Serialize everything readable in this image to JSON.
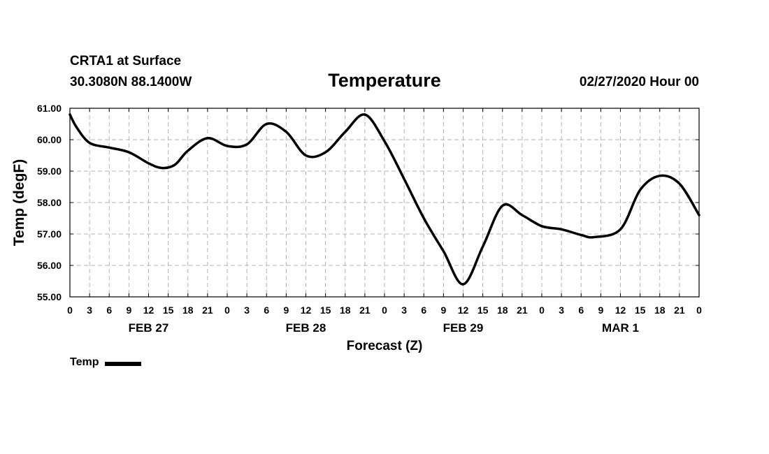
{
  "header": {
    "station_name": "CRTA1 at Surface",
    "station_coords": "30.3080N 88.1400W",
    "title": "Temperature",
    "run_time": "02/27/2020 Hour 00"
  },
  "legend": {
    "label": "Temp",
    "color": "#000000"
  },
  "chart_data": {
    "type": "line",
    "title": "Temperature",
    "xlabel": "Forecast (Z)",
    "ylabel": "Temp (degF)",
    "ylim": [
      55.0,
      61.0
    ],
    "xlim": [
      0,
      96
    ],
    "x_unit": "forecast hour (Z)",
    "y_ticks": [
      "55.00",
      "56.00",
      "57.00",
      "58.00",
      "59.00",
      "60.00",
      "61.00"
    ],
    "x_tick_labels": [
      "0",
      "3",
      "6",
      "9",
      "12",
      "15",
      "18",
      "21",
      "0",
      "3",
      "6",
      "9",
      "12",
      "15",
      "18",
      "21",
      "0",
      "3",
      "6",
      "9",
      "12",
      "15",
      "18",
      "21",
      "0",
      "3",
      "6",
      "9",
      "12",
      "15",
      "18",
      "21",
      "0"
    ],
    "date_labels": [
      {
        "label": "FEB 27",
        "hour": 12
      },
      {
        "label": "FEB 28",
        "hour": 36
      },
      {
        "label": "FEB 29",
        "hour": 60
      },
      {
        "label": "MAR 1",
        "hour": 84
      }
    ],
    "grid": true,
    "legend_position": "bottom-left",
    "series": [
      {
        "name": "Temp",
        "color": "#000000",
        "x": [
          0,
          1,
          3,
          6,
          9,
          12,
          14,
          16,
          18,
          21,
          24,
          27,
          30,
          33,
          36,
          39,
          42,
          45,
          48,
          51,
          54,
          57,
          60,
          63,
          66,
          69,
          72,
          75,
          78,
          80,
          84,
          87,
          90,
          93,
          96
        ],
        "values": [
          60.8,
          60.4,
          59.9,
          59.75,
          59.6,
          59.25,
          59.1,
          59.2,
          59.65,
          60.05,
          59.8,
          59.85,
          60.5,
          60.25,
          59.5,
          59.6,
          60.25,
          60.8,
          59.95,
          58.75,
          57.5,
          56.45,
          55.4,
          56.6,
          57.9,
          57.6,
          57.25,
          57.15,
          56.97,
          56.9,
          57.15,
          58.4,
          58.85,
          58.6,
          57.6
        ]
      }
    ]
  }
}
